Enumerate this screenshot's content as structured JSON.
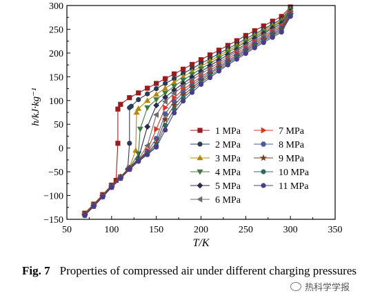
{
  "chart_data": {
    "type": "line",
    "xlabel": "T/K",
    "ylabel": "h/kJ·kg⁻¹",
    "xlim": [
      50,
      350
    ],
    "ylim": [
      -150,
      300
    ],
    "xticks": [
      50,
      100,
      150,
      200,
      250,
      300,
      350
    ],
    "yticks": [
      -150,
      -100,
      -50,
      0,
      50,
      100,
      150,
      200,
      250,
      300
    ],
    "grid": false,
    "legend_position": "lower-right",
    "series": [
      {
        "name": "1 MPa",
        "color": "#9b1c1c",
        "marker": "square",
        "points": [
          [
            70,
            -137
          ],
          [
            80,
            -118
          ],
          [
            90,
            -98
          ],
          [
            100,
            -78
          ],
          [
            105,
            -68
          ],
          [
            107,
            10
          ],
          [
            107,
            82
          ],
          [
            110,
            92
          ],
          [
            120,
            106
          ],
          [
            130,
            116
          ],
          [
            140,
            126
          ],
          [
            150,
            136
          ],
          [
            160,
            146
          ],
          [
            170,
            156
          ],
          [
            180,
            166
          ],
          [
            190,
            176
          ],
          [
            200,
            186
          ],
          [
            210,
            196
          ],
          [
            220,
            206
          ],
          [
            230,
            216
          ],
          [
            240,
            226
          ],
          [
            250,
            237
          ],
          [
            260,
            247
          ],
          [
            270,
            257
          ],
          [
            280,
            267
          ],
          [
            290,
            277
          ],
          [
            300,
            297
          ]
        ]
      },
      {
        "name": "2 MPa",
        "color": "#2b3a55",
        "marker": "circle",
        "points": [
          [
            70,
            -138
          ],
          [
            80,
            -119
          ],
          [
            90,
            -99
          ],
          [
            100,
            -79
          ],
          [
            110,
            -60
          ],
          [
            118,
            -45
          ],
          [
            120,
            10
          ],
          [
            120,
            85
          ],
          [
            122,
            88
          ],
          [
            130,
            102
          ],
          [
            140,
            114
          ],
          [
            150,
            125
          ],
          [
            160,
            136
          ],
          [
            170,
            146
          ],
          [
            180,
            157
          ],
          [
            190,
            167
          ],
          [
            200,
            178
          ],
          [
            210,
            188
          ],
          [
            220,
            199
          ],
          [
            230,
            209
          ],
          [
            240,
            219
          ],
          [
            250,
            230
          ],
          [
            260,
            240
          ],
          [
            270,
            250
          ],
          [
            280,
            261
          ],
          [
            290,
            271
          ],
          [
            300,
            294
          ]
        ]
      },
      {
        "name": "3 MPa",
        "color": "#b8860b",
        "marker": "triangle-up",
        "points": [
          [
            70,
            -138
          ],
          [
            80,
            -119
          ],
          [
            90,
            -99
          ],
          [
            100,
            -79
          ],
          [
            110,
            -60
          ],
          [
            120,
            -41
          ],
          [
            127,
            -5
          ],
          [
            128,
            75
          ],
          [
            130,
            83
          ],
          [
            140,
            100
          ],
          [
            150,
            113
          ],
          [
            160,
            126
          ],
          [
            170,
            138
          ],
          [
            180,
            150
          ],
          [
            190,
            161
          ],
          [
            200,
            172
          ],
          [
            210,
            183
          ],
          [
            220,
            194
          ],
          [
            230,
            205
          ],
          [
            240,
            215
          ],
          [
            250,
            226
          ],
          [
            260,
            237
          ],
          [
            270,
            247
          ],
          [
            280,
            258
          ],
          [
            290,
            268
          ],
          [
            300,
            292
          ]
        ]
      },
      {
        "name": "4 MPa",
        "color": "#3c7a3c",
        "marker": "triangle-down",
        "points": [
          [
            70,
            -139
          ],
          [
            80,
            -120
          ],
          [
            90,
            -100
          ],
          [
            100,
            -80
          ],
          [
            110,
            -61
          ],
          [
            120,
            -42
          ],
          [
            130,
            -12
          ],
          [
            132,
            40
          ],
          [
            140,
            85
          ],
          [
            150,
            102
          ],
          [
            160,
            116
          ],
          [
            170,
            130
          ],
          [
            180,
            143
          ],
          [
            190,
            155
          ],
          [
            200,
            167
          ],
          [
            210,
            178
          ],
          [
            220,
            190
          ],
          [
            230,
            201
          ],
          [
            240,
            212
          ],
          [
            250,
            223
          ],
          [
            260,
            234
          ],
          [
            270,
            244
          ],
          [
            280,
            255
          ],
          [
            290,
            266
          ],
          [
            300,
            290
          ]
        ]
      },
      {
        "name": "5 MPa",
        "color": "#2b2b4e",
        "marker": "diamond",
        "points": [
          [
            70,
            -139
          ],
          [
            80,
            -120
          ],
          [
            90,
            -100
          ],
          [
            100,
            -80
          ],
          [
            110,
            -61
          ],
          [
            120,
            -42
          ],
          [
            130,
            -22
          ],
          [
            140,
            45
          ],
          [
            150,
            90
          ],
          [
            160,
            107
          ],
          [
            170,
            122
          ],
          [
            180,
            136
          ],
          [
            190,
            149
          ],
          [
            200,
            161
          ],
          [
            210,
            173
          ],
          [
            220,
            185
          ],
          [
            230,
            196
          ],
          [
            240,
            207
          ],
          [
            250,
            219
          ],
          [
            260,
            230
          ],
          [
            270,
            241
          ],
          [
            280,
            252
          ],
          [
            290,
            262
          ],
          [
            300,
            288
          ]
        ]
      },
      {
        "name": "6 MPa",
        "color": "#6b6b6b",
        "marker": "triangle-left",
        "points": [
          [
            70,
            -140
          ],
          [
            80,
            -121
          ],
          [
            90,
            -101
          ],
          [
            100,
            -81
          ],
          [
            110,
            -62
          ],
          [
            120,
            -43
          ],
          [
            130,
            -24
          ],
          [
            140,
            5
          ],
          [
            150,
            70
          ],
          [
            160,
            98
          ],
          [
            170,
            115
          ],
          [
            180,
            130
          ],
          [
            190,
            143
          ],
          [
            200,
            156
          ],
          [
            210,
            168
          ],
          [
            220,
            180
          ],
          [
            230,
            192
          ],
          [
            240,
            204
          ],
          [
            250,
            215
          ],
          [
            260,
            226
          ],
          [
            270,
            237
          ],
          [
            280,
            248
          ],
          [
            290,
            259
          ],
          [
            300,
            286
          ]
        ]
      },
      {
        "name": "7 MPa",
        "color": "#e0321e",
        "marker": "triangle-right",
        "points": [
          [
            70,
            -140
          ],
          [
            80,
            -121
          ],
          [
            90,
            -101
          ],
          [
            100,
            -82
          ],
          [
            110,
            -62
          ],
          [
            120,
            -43
          ],
          [
            130,
            -25
          ],
          [
            140,
            -5
          ],
          [
            150,
            40
          ],
          [
            160,
            85
          ],
          [
            170,
            106
          ],
          [
            180,
            123
          ],
          [
            190,
            137
          ],
          [
            200,
            150
          ],
          [
            210,
            163
          ],
          [
            220,
            176
          ],
          [
            230,
            188
          ],
          [
            240,
            200
          ],
          [
            250,
            211
          ],
          [
            260,
            223
          ],
          [
            270,
            234
          ],
          [
            280,
            245
          ],
          [
            290,
            256
          ],
          [
            300,
            284
          ]
        ]
      },
      {
        "name": "8 MPa",
        "color": "#4a5a9c",
        "marker": "hexagon",
        "points": [
          [
            70,
            -141
          ],
          [
            80,
            -122
          ],
          [
            90,
            -102
          ],
          [
            100,
            -82
          ],
          [
            110,
            -63
          ],
          [
            120,
            -44
          ],
          [
            130,
            -25
          ],
          [
            140,
            -8
          ],
          [
            150,
            20
          ],
          [
            160,
            72
          ],
          [
            170,
            98
          ],
          [
            180,
            117
          ],
          [
            190,
            132
          ],
          [
            200,
            146
          ],
          [
            210,
            159
          ],
          [
            220,
            172
          ],
          [
            230,
            184
          ],
          [
            240,
            196
          ],
          [
            250,
            208
          ],
          [
            260,
            220
          ],
          [
            270,
            231
          ],
          [
            280,
            242
          ],
          [
            290,
            253
          ],
          [
            300,
            282
          ]
        ]
      },
      {
        "name": "9 MPa",
        "color": "#7a3b1e",
        "marker": "star",
        "points": [
          [
            70,
            -141
          ],
          [
            80,
            -122
          ],
          [
            90,
            -102
          ],
          [
            100,
            -82
          ],
          [
            110,
            -63
          ],
          [
            120,
            -44
          ],
          [
            130,
            -26
          ],
          [
            140,
            -10
          ],
          [
            150,
            10
          ],
          [
            160,
            60
          ],
          [
            170,
            90
          ],
          [
            180,
            111
          ],
          [
            190,
            127
          ],
          [
            200,
            142
          ],
          [
            210,
            156
          ],
          [
            220,
            169
          ],
          [
            230,
            181
          ],
          [
            240,
            193
          ],
          [
            250,
            205
          ],
          [
            260,
            217
          ],
          [
            270,
            228
          ],
          [
            280,
            239
          ],
          [
            290,
            250
          ],
          [
            300,
            281
          ]
        ]
      },
      {
        "name": "10 MPa",
        "color": "#2e6b5e",
        "marker": "circle",
        "points": [
          [
            70,
            -142
          ],
          [
            80,
            -123
          ],
          [
            90,
            -103
          ],
          [
            100,
            -83
          ],
          [
            110,
            -64
          ],
          [
            120,
            -45
          ],
          [
            130,
            -27
          ],
          [
            140,
            -12
          ],
          [
            150,
            5
          ],
          [
            160,
            48
          ],
          [
            170,
            82
          ],
          [
            180,
            105
          ],
          [
            190,
            122
          ],
          [
            200,
            138
          ],
          [
            210,
            152
          ],
          [
            220,
            165
          ],
          [
            230,
            178
          ],
          [
            240,
            190
          ],
          [
            250,
            202
          ],
          [
            260,
            214
          ],
          [
            270,
            225
          ],
          [
            280,
            236
          ],
          [
            290,
            247
          ],
          [
            300,
            279
          ]
        ]
      },
      {
        "name": "11 MPa",
        "color": "#4b3b8c",
        "marker": "circle",
        "points": [
          [
            70,
            -142
          ],
          [
            80,
            -123
          ],
          [
            90,
            -103
          ],
          [
            100,
            -83
          ],
          [
            110,
            -64
          ],
          [
            120,
            -45
          ],
          [
            130,
            -28
          ],
          [
            140,
            -14
          ],
          [
            150,
            2
          ],
          [
            160,
            38
          ],
          [
            170,
            74
          ],
          [
            180,
            99
          ],
          [
            190,
            117
          ],
          [
            200,
            134
          ],
          [
            210,
            148
          ],
          [
            220,
            162
          ],
          [
            230,
            175
          ],
          [
            240,
            187
          ],
          [
            250,
            199
          ],
          [
            260,
            211
          ],
          [
            270,
            222
          ],
          [
            280,
            233
          ],
          [
            290,
            244
          ],
          [
            300,
            277
          ]
        ]
      }
    ]
  },
  "caption": {
    "label": "Fig. 7",
    "text": "Properties of compressed air under different charging pressures"
  },
  "watermark": {
    "text": "热科学学报"
  }
}
